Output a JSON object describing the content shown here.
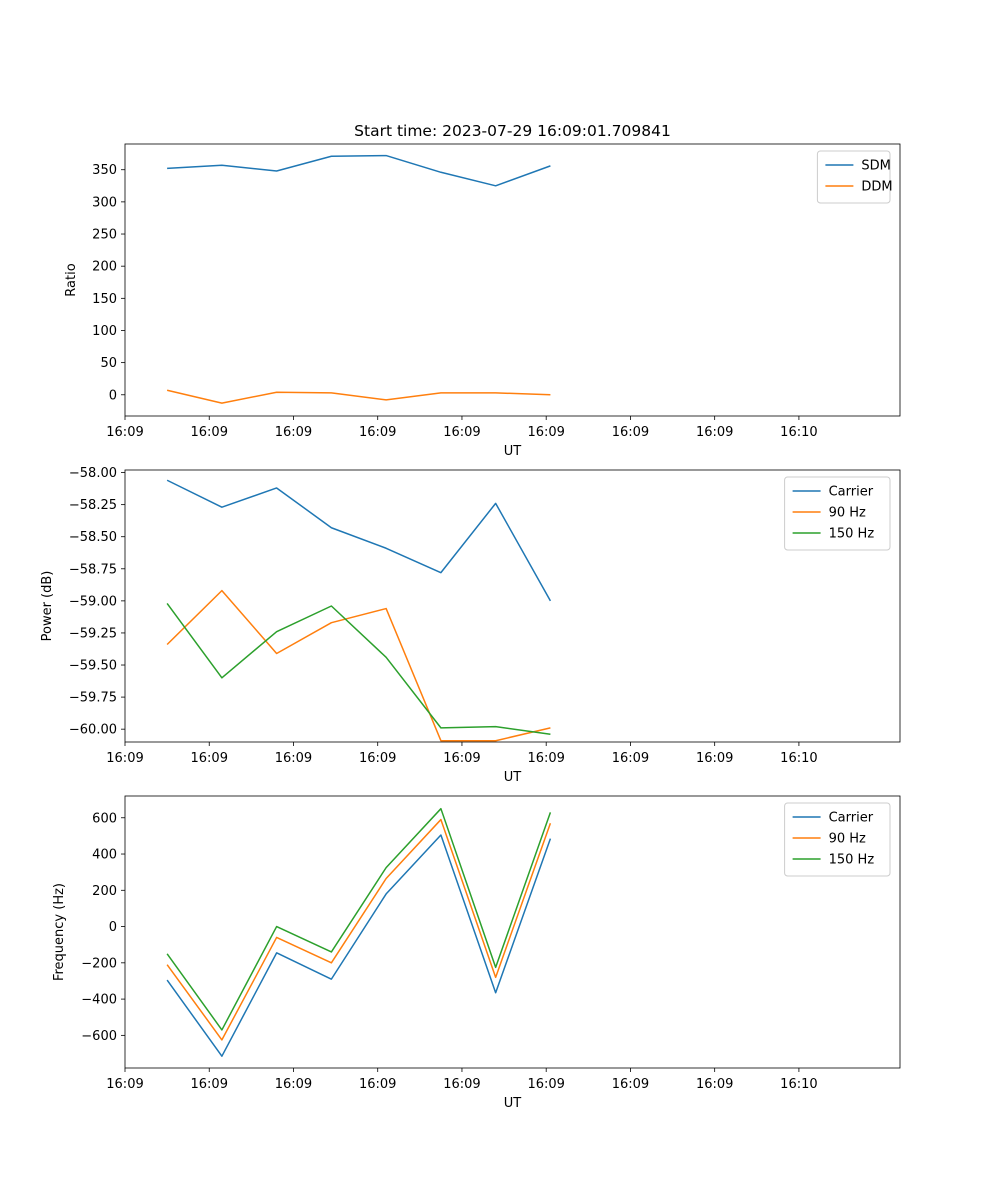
{
  "chart_data": [
    {
      "type": "line",
      "title": "Start time: 2023-07-29 16:09:01.709841",
      "xlabel": "UT",
      "ylabel": "Ratio",
      "xlim": [
        0,
        9.2
      ],
      "ylim": [
        -33,
        390
      ],
      "x_ticks": [
        0,
        1,
        2,
        3,
        4,
        5,
        6,
        7,
        8
      ],
      "x_tick_labels": [
        "16:09",
        "16:09",
        "16:09",
        "16:09",
        "16:09",
        "16:09",
        "16:09",
        "16:09",
        "16:10"
      ],
      "y_ticks": [
        0,
        50,
        100,
        150,
        200,
        250,
        300,
        350
      ],
      "y_tick_labels": [
        "0",
        "50",
        "100",
        "150",
        "200",
        "250",
        "300",
        "350"
      ],
      "legend_position": "top-right",
      "x": [
        0.5,
        1.15,
        1.8,
        2.45,
        3.1,
        3.75,
        4.4,
        5.05
      ],
      "series": [
        {
          "name": "SDM",
          "color": "#1f77b4",
          "values": [
            352,
            357,
            348,
            371,
            372,
            346,
            325,
            356
          ]
        },
        {
          "name": "DDM",
          "color": "#ff7f0e",
          "values": [
            7,
            -13,
            4,
            3,
            -8,
            3,
            3,
            0
          ]
        }
      ]
    },
    {
      "type": "line",
      "title": "",
      "xlabel": "UT",
      "ylabel": "Power (dB)",
      "xlim": [
        0,
        9.2
      ],
      "ylim": [
        -60.1,
        -57.98
      ],
      "x_ticks": [
        0,
        1,
        2,
        3,
        4,
        5,
        6,
        7,
        8
      ],
      "x_tick_labels": [
        "16:09",
        "16:09",
        "16:09",
        "16:09",
        "16:09",
        "16:09",
        "16:09",
        "16:09",
        "16:10"
      ],
      "y_ticks": [
        -60.0,
        -59.75,
        -59.5,
        -59.25,
        -59.0,
        -58.75,
        -58.5,
        -58.25,
        -58.0
      ],
      "y_tick_labels": [
        "−60.00",
        "−59.75",
        "−59.50",
        "−59.25",
        "−59.00",
        "−58.75",
        "−58.50",
        "−58.25",
        "−58.00"
      ],
      "legend_position": "top-right",
      "x": [
        0.5,
        1.15,
        1.8,
        2.45,
        3.1,
        3.75,
        4.4,
        5.05
      ],
      "series": [
        {
          "name": "Carrier",
          "color": "#1f77b4",
          "values": [
            -58.06,
            -58.27,
            -58.12,
            -58.43,
            -58.59,
            -58.78,
            -58.24,
            -59.0
          ]
        },
        {
          "name": "90 Hz",
          "color": "#ff7f0e",
          "values": [
            -59.34,
            -58.92,
            -59.41,
            -59.17,
            -59.06,
            -60.09,
            -60.09,
            -59.99
          ]
        },
        {
          "name": "150 Hz",
          "color": "#2ca02c",
          "values": [
            -59.02,
            -59.6,
            -59.24,
            -59.04,
            -59.44,
            -59.99,
            -59.98,
            -60.04
          ]
        }
      ]
    },
    {
      "type": "line",
      "title": "",
      "xlabel": "UT",
      "ylabel": "Frequency (Hz)",
      "xlim": [
        0,
        9.2
      ],
      "ylim": [
        -780,
        720
      ],
      "x_ticks": [
        0,
        1,
        2,
        3,
        4,
        5,
        6,
        7,
        8
      ],
      "x_tick_labels": [
        "16:09",
        "16:09",
        "16:09",
        "16:09",
        "16:09",
        "16:09",
        "16:09",
        "16:09",
        "16:10"
      ],
      "y_ticks": [
        -600,
        -400,
        -200,
        0,
        200,
        400,
        600
      ],
      "y_tick_labels": [
        "−600",
        "−400",
        "−200",
        "0",
        "200",
        "400",
        "600"
      ],
      "legend_position": "top-right",
      "x": [
        0.5,
        1.15,
        1.8,
        2.45,
        3.1,
        3.75,
        4.4,
        5.05
      ],
      "series": [
        {
          "name": "Carrier",
          "color": "#1f77b4",
          "values": [
            -295,
            -715,
            -145,
            -290,
            180,
            505,
            -365,
            485
          ]
        },
        {
          "name": "90 Hz",
          "color": "#ff7f0e",
          "values": [
            -210,
            -625,
            -60,
            -200,
            265,
            590,
            -280,
            570
          ]
        },
        {
          "name": "150 Hz",
          "color": "#2ca02c",
          "values": [
            -150,
            -570,
            0,
            -140,
            325,
            650,
            -225,
            630
          ]
        }
      ]
    }
  ]
}
